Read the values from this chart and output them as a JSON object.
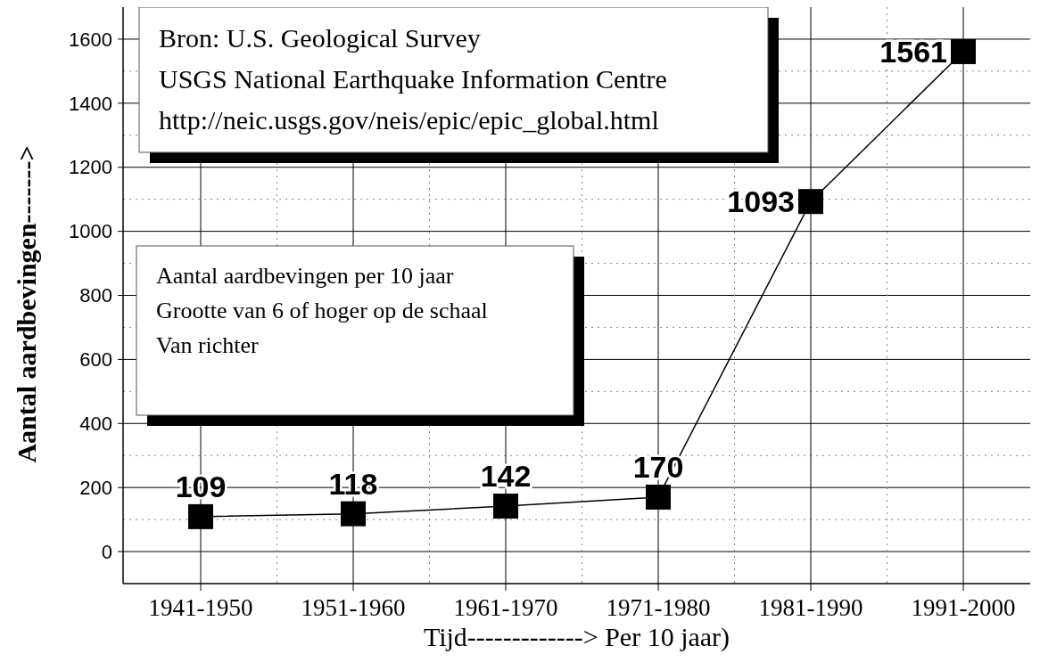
{
  "chart_data": {
    "type": "line",
    "xlabel": "Tijd-------------> Per 10 jaar)",
    "ylabel": "Aantal aardbevingen------->",
    "categories": [
      "1941-1950",
      "1951-1960",
      "1961-1970",
      "1971-1980",
      "1981-1990",
      "1991-2000"
    ],
    "values": [
      109,
      118,
      142,
      170,
      1093,
      1561
    ],
    "color": "#000000",
    "marker": "square",
    "line_style": "solid",
    "data_labels": true,
    "grid": true,
    "ylim": [
      -100,
      1700
    ],
    "yticks": [
      0,
      200,
      400,
      600,
      800,
      1000,
      1200,
      1400,
      1600
    ],
    "annotations": [
      "Bron: U.S. Geological Survey\nUSGS National Earthquake Information Centre\nhttp://neic.usgs.gov/neis/epic/epic_global.html",
      "Aantal aardbevingen per 10 jaar\nGrootte van 6 of hoger op de schaal\nVan richter"
    ]
  }
}
